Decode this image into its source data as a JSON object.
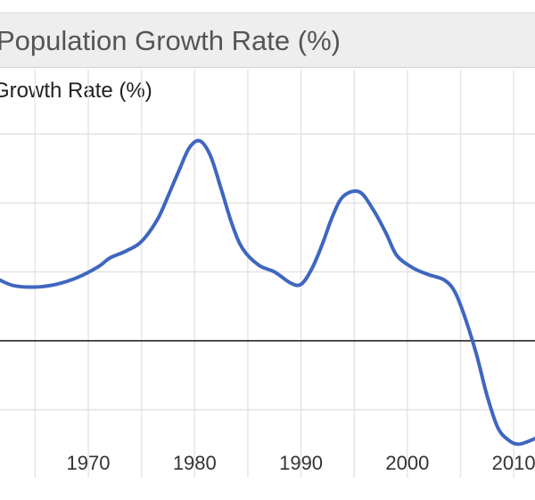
{
  "chart_data": {
    "type": "line",
    "title": "Population Growth Rate (%)",
    "ylabel": "Growth Rate (%)",
    "xlabel": "",
    "x_ticks": [
      1970,
      1980,
      1990,
      2000,
      2010
    ],
    "xlim": [
      1961.7,
      2012.0
    ],
    "ylim": [
      -1.0,
      2.0
    ],
    "y_grid": [
      -0.5,
      0,
      0.5,
      1.0,
      1.5
    ],
    "zero_line": 0,
    "grid": true,
    "series": [
      {
        "name": "",
        "color": "#3f66c0",
        "points": [
          [
            1961.7,
            0.44
          ],
          [
            1963.0,
            0.4
          ],
          [
            1965.0,
            0.39
          ],
          [
            1967.0,
            0.41
          ],
          [
            1969.0,
            0.46
          ],
          [
            1971.0,
            0.54
          ],
          [
            1972.0,
            0.6
          ],
          [
            1973.5,
            0.65
          ],
          [
            1975.0,
            0.72
          ],
          [
            1976.5,
            0.88
          ],
          [
            1977.5,
            1.05
          ],
          [
            1978.5,
            1.23
          ],
          [
            1979.5,
            1.4
          ],
          [
            1980.5,
            1.45
          ],
          [
            1981.5,
            1.34
          ],
          [
            1982.5,
            1.1
          ],
          [
            1983.5,
            0.85
          ],
          [
            1984.5,
            0.67
          ],
          [
            1986.0,
            0.55
          ],
          [
            1987.5,
            0.5
          ],
          [
            1989.0,
            0.42
          ],
          [
            1990.0,
            0.41
          ],
          [
            1991.0,
            0.52
          ],
          [
            1992.0,
            0.7
          ],
          [
            1993.0,
            0.91
          ],
          [
            1994.0,
            1.05
          ],
          [
            1995.5,
            1.08
          ],
          [
            1996.8,
            0.95
          ],
          [
            1998.0,
            0.78
          ],
          [
            1999.0,
            0.62
          ],
          [
            2000.5,
            0.53
          ],
          [
            2002.0,
            0.48
          ],
          [
            2003.5,
            0.44
          ],
          [
            2004.5,
            0.35
          ],
          [
            2005.5,
            0.15
          ],
          [
            2006.5,
            -0.1
          ],
          [
            2007.5,
            -0.4
          ],
          [
            2008.5,
            -0.63
          ],
          [
            2009.5,
            -0.72
          ],
          [
            2010.5,
            -0.75
          ],
          [
            2012.0,
            -0.71
          ]
        ]
      }
    ]
  }
}
